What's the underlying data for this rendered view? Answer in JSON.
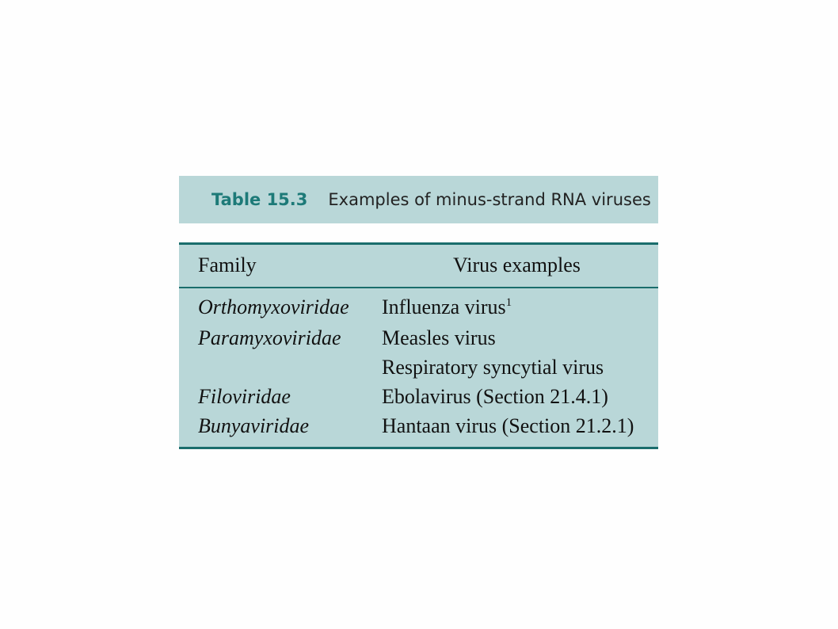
{
  "caption": {
    "label": "Table 15.3",
    "title": "Examples of minus-strand RNA viruses"
  },
  "table": {
    "headers": [
      "Family",
      "Virus examples"
    ],
    "rows": [
      {
        "family": "Orthomyxoviridae",
        "virus": "Influenza virus",
        "footnote": "1"
      },
      {
        "family": "Paramyxoviridae",
        "virus": "Measles virus"
      },
      {
        "family": "",
        "virus": "Respiratory syncytial virus"
      },
      {
        "family": "Filoviridae",
        "virus": "Ebolavirus (Section 21.4.1)"
      },
      {
        "family": "Bunyaviridae",
        "virus": "Hantaan virus (Section 21.2.1)"
      }
    ]
  },
  "colors": {
    "background": "#fefefe",
    "panel": "#b9d7d8",
    "rule": "#1a6d6c",
    "label": "#1d7a78"
  }
}
